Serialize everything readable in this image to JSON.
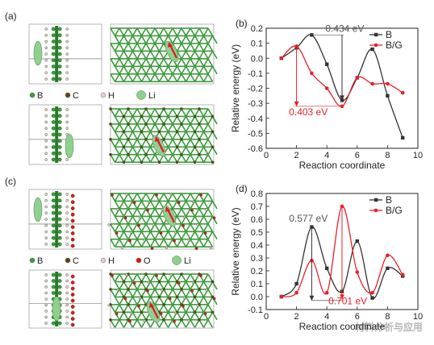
{
  "panel_labels": {
    "a": "(a)",
    "b": "(b)",
    "c": "(c)",
    "d": "(d)"
  },
  "legend_a": {
    "b": "B",
    "c": "C",
    "h": "H",
    "li": "Li"
  },
  "legend_c": {
    "b": "B",
    "c": "C",
    "h": "H",
    "o": "O",
    "li": "Li"
  },
  "colors": {
    "boron": "#3c9a3c",
    "carbon": "#6b3a1a",
    "hydrogen": "#f2c6d6",
    "oxygen": "#e0141e",
    "lithium": "#8fcf8f",
    "arrow": "#e8141e",
    "series_b": "#333333",
    "series_bg": "#e8202a"
  },
  "watermark": "材料分析与应用",
  "chart_data": [
    {
      "panel": "b",
      "type": "line",
      "xlabel": "Reaction coordinate",
      "ylabel": "Relative energy (eV)",
      "xlim": [
        0,
        10
      ],
      "ylim": [
        -0.6,
        0.2
      ],
      "xticks": [
        0,
        2,
        4,
        6,
        8,
        10
      ],
      "yticks": [
        0.2,
        0.1,
        0.0,
        -0.1,
        -0.2,
        -0.3,
        -0.4,
        -0.5,
        -0.6
      ],
      "legend_position": "top-right",
      "series": [
        {
          "name": "B",
          "color": "#333333",
          "marker": "square",
          "x": [
            1,
            2,
            3,
            4,
            5,
            6,
            7,
            8,
            9
          ],
          "y": [
            0.0,
            0.07,
            0.155,
            -0.04,
            -0.28,
            -0.13,
            0.06,
            -0.25,
            -0.53
          ]
        },
        {
          "name": "B/G",
          "color": "#e8202a",
          "marker": "circle",
          "x": [
            1,
            2,
            3,
            4,
            5,
            6,
            7,
            8,
            9
          ],
          "y": [
            0.0,
            0.08,
            -0.1,
            -0.2,
            -0.32,
            -0.13,
            -0.17,
            -0.17,
            -0.23
          ]
        }
      ],
      "annotations": [
        {
          "text": "0.434 eV",
          "color": "#555555"
        },
        {
          "text": "0.403 eV",
          "color": "#e8202a"
        }
      ]
    },
    {
      "panel": "d",
      "type": "line",
      "xlabel": "Reaction coordinate",
      "ylabel": "Relative energy (eV)",
      "xlim": [
        0,
        10
      ],
      "ylim": [
        -0.1,
        0.8
      ],
      "xticks": [
        0,
        2,
        4,
        6,
        8,
        10
      ],
      "yticks": [
        0.8,
        0.7,
        0.6,
        0.5,
        0.4,
        0.3,
        0.2,
        0.1,
        0.0,
        -0.1
      ],
      "legend_position": "top-right",
      "series": [
        {
          "name": "B",
          "color": "#333333",
          "marker": "square",
          "x": [
            1,
            2,
            3,
            4,
            5,
            6,
            7,
            8,
            9
          ],
          "y": [
            0.0,
            0.1,
            0.54,
            0.22,
            0.04,
            0.43,
            -0.01,
            0.22,
            0.16
          ]
        },
        {
          "name": "B/G",
          "color": "#e8202a",
          "marker": "circle",
          "x": [
            1,
            2,
            3,
            4,
            5,
            6,
            7,
            8,
            9
          ],
          "y": [
            0.0,
            0.03,
            0.28,
            0.03,
            0.7,
            0.19,
            0.03,
            0.32,
            0.17
          ]
        }
      ],
      "annotations": [
        {
          "text": "0.577 eV",
          "color": "#555555"
        },
        {
          "text": "0.701 eV",
          "color": "#e8202a"
        }
      ]
    }
  ]
}
